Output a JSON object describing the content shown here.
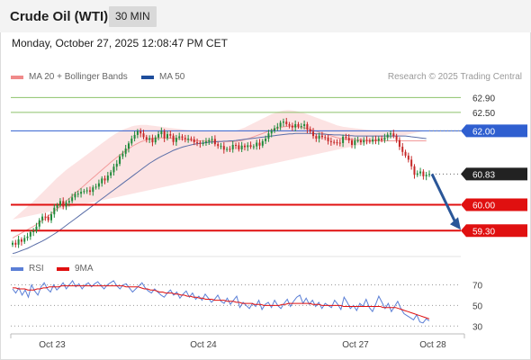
{
  "header": {
    "title": "Crude Oil (WTI)",
    "timeframe": "30 MIN"
  },
  "date_text": "Monday, October 27, 2025 12:08:47 PM CET",
  "credit": "Research © 2025 Trading Central",
  "legend": [
    {
      "label": "MA 20 + Bollinger Bands",
      "color": "#f08a8a"
    },
    {
      "label": "MA 50",
      "color": "#1f4e9c"
    }
  ],
  "rsi_legend": [
    {
      "label": "RSI",
      "color": "#5b7fd6"
    },
    {
      "label": "9MA",
      "color": "#e01010"
    }
  ],
  "colors": {
    "up": "#1f8a3a",
    "down": "#c62828",
    "bb_fill": "#fcdede",
    "ma20": "#f29a9a",
    "ma50": "#5b6fa8",
    "pivot": "#2f5fd0",
    "resistance": "#8cc26a",
    "support": "#e01010",
    "last": "#222222",
    "arrow": "#2a5698"
  },
  "chart_data": [
    {
      "type": "candlestick",
      "x_ticks": [
        "Oct 23",
        "Oct 24",
        "Oct 27",
        "Oct 28"
      ],
      "ylim": [
        58.6,
        63.3
      ],
      "levels": [
        {
          "value": 62.9,
          "label": "62.90",
          "kind": "resistance"
        },
        {
          "value": 62.5,
          "label": "62.50",
          "kind": "resistance"
        },
        {
          "value": 62.0,
          "label": "62.00",
          "kind": "pivot"
        },
        {
          "value": 60.0,
          "label": "60.00",
          "kind": "support"
        },
        {
          "value": 59.3,
          "label": "59.30",
          "kind": "support"
        }
      ],
      "last_price": {
        "value": 60.83,
        "label": "60.83"
      },
      "closes": [
        58.97,
        58.92,
        59.06,
        59.0,
        59.1,
        59.14,
        59.26,
        59.29,
        59.41,
        59.58,
        59.68,
        59.67,
        59.58,
        59.74,
        59.92,
        59.99,
        60.1,
        59.95,
        60.06,
        60.1,
        60.2,
        60.29,
        60.3,
        60.35,
        60.37,
        60.39,
        60.35,
        60.47,
        60.49,
        60.58,
        60.71,
        60.66,
        60.79,
        60.88,
        61.03,
        61.11,
        61.31,
        61.38,
        61.52,
        61.66,
        61.79,
        61.89,
        61.99,
        61.93,
        61.83,
        61.76,
        61.8,
        61.69,
        61.82,
        61.91,
        61.99,
        61.8,
        61.91,
        61.87,
        61.7,
        61.81,
        61.85,
        61.81,
        61.78,
        61.79,
        61.77,
        61.69,
        61.68,
        61.65,
        61.67,
        61.71,
        61.75,
        61.78,
        61.64,
        61.59,
        61.59,
        61.49,
        61.51,
        61.5,
        61.62,
        61.61,
        61.5,
        61.6,
        61.56,
        61.61,
        61.57,
        61.58,
        61.68,
        61.6,
        61.72,
        61.79,
        61.93,
        62.0,
        62.07,
        62.11,
        62.22,
        62.25,
        62.18,
        62.14,
        62.09,
        62.18,
        62.12,
        62.13,
        62.18,
        62.04,
        61.98,
        61.86,
        61.79,
        61.87,
        61.83,
        61.82,
        61.72,
        61.7,
        61.69,
        61.68,
        61.67,
        61.84,
        61.81,
        61.74,
        61.62,
        61.74,
        61.74,
        61.69,
        61.75,
        61.74,
        61.71,
        61.77,
        61.73,
        61.79,
        61.75,
        61.82,
        61.9,
        61.93,
        61.86,
        61.75,
        61.57,
        61.43,
        61.33,
        61.22,
        61.04,
        60.81,
        60.85,
        60.9,
        60.77,
        60.81,
        60.83
      ],
      "ma50": [
        58.68,
        58.7,
        58.73,
        58.76,
        58.79,
        58.82,
        58.86,
        58.9,
        58.94,
        58.98,
        59.02,
        59.06,
        59.11,
        59.16,
        59.21,
        59.26,
        59.32,
        59.38,
        59.44,
        59.5,
        59.56,
        59.62,
        59.68,
        59.74,
        59.8,
        59.86,
        59.92,
        59.98,
        60.04,
        60.1,
        60.16,
        60.22,
        60.28,
        60.34,
        60.4,
        60.46,
        60.52,
        60.58,
        60.64,
        60.7,
        60.76,
        60.82,
        60.88,
        60.94,
        61.0,
        61.06,
        61.12,
        61.17,
        61.22,
        61.27,
        61.31,
        61.35,
        61.39,
        61.43,
        61.47,
        61.5,
        61.53,
        61.56,
        61.58,
        61.6,
        61.62,
        61.64,
        61.65,
        61.66,
        61.67,
        61.68,
        61.69,
        61.7,
        61.7,
        61.71,
        61.71,
        61.72,
        61.72,
        61.73,
        61.73,
        61.74,
        61.75,
        61.76,
        61.77,
        61.78,
        61.79,
        61.8,
        61.81,
        61.82,
        61.83,
        61.84,
        61.85,
        61.86,
        61.87,
        61.88,
        61.89,
        61.9,
        61.91,
        61.92,
        61.92,
        61.93,
        61.93,
        61.93,
        61.93,
        61.93,
        61.93,
        61.93,
        61.92,
        61.92,
        61.91,
        61.91,
        61.9,
        61.9,
        61.89,
        61.89,
        61.89,
        61.88,
        61.88,
        61.87,
        61.87,
        61.86,
        61.86,
        61.86,
        61.86,
        61.86,
        61.86,
        61.86,
        61.86,
        61.86,
        61.86,
        61.86,
        61.86,
        61.86,
        61.86,
        61.86,
        61.86,
        61.86,
        61.86,
        61.85,
        61.84,
        61.83,
        61.82,
        61.81,
        61.8,
        61.79
      ],
      "bb_upper": [
        59.6,
        59.67,
        59.74,
        59.81,
        59.88,
        59.95,
        60.02,
        60.09,
        60.17,
        60.25,
        60.33,
        60.41,
        60.49,
        60.57,
        60.65,
        60.73,
        60.8,
        60.87,
        60.94,
        61.0,
        61.06,
        61.12,
        61.18,
        61.24,
        61.3,
        61.36,
        61.42,
        61.48,
        61.54,
        61.6,
        61.66,
        61.72,
        61.78,
        61.84,
        61.89,
        61.94,
        61.99,
        62.03,
        62.06,
        62.09,
        62.12,
        62.14,
        62.15,
        62.16,
        62.16,
        62.16,
        62.15,
        62.14,
        62.13,
        62.12,
        62.11,
        62.1,
        62.09,
        62.08,
        62.07,
        62.06,
        62.05,
        62.04,
        62.03,
        62.02,
        62.01,
        62.0,
        62.0,
        62.0,
        62.0,
        62.0,
        62.0,
        62.0,
        62.0,
        62.0,
        62.0,
        62.0,
        62.0,
        62.0,
        62.0,
        62.01,
        62.03,
        62.06,
        62.09,
        62.13,
        62.17,
        62.21,
        62.25,
        62.29,
        62.33,
        62.37,
        62.41,
        62.45,
        62.48,
        62.51,
        62.53,
        62.55,
        62.56,
        62.56,
        62.55,
        62.54,
        62.52,
        62.5,
        62.48,
        62.45,
        62.42,
        62.39,
        62.36,
        62.33,
        62.3,
        62.27,
        62.24,
        62.21,
        62.18,
        62.15,
        62.13,
        62.11,
        62.1,
        62.09,
        62.08,
        62.07,
        62.06,
        62.05,
        62.04,
        62.03,
        62.02,
        62.01,
        62.01,
        62.01,
        62.01,
        62.01,
        62.01,
        62.01,
        62.01,
        62.01,
        62.01,
        62.01,
        62.01,
        62.01,
        62.01,
        62.01,
        62.01,
        62.01,
        62.01,
        62.01
      ],
      "bb_lower": [
        58.6,
        58.62,
        58.64,
        58.66,
        58.68,
        58.7,
        58.72,
        58.74,
        58.76,
        58.79,
        58.82,
        58.86,
        58.9,
        58.95,
        59.0,
        59.06,
        59.12,
        59.19,
        59.26,
        59.34,
        59.42,
        59.5,
        59.58,
        59.66,
        59.74,
        59.82,
        59.9,
        59.98,
        60.06,
        60.14,
        60.22,
        60.3,
        60.38,
        60.46,
        60.54,
        60.62,
        60.7,
        60.78,
        60.86,
        60.94,
        61.02,
        61.1,
        61.17,
        61.24,
        61.3,
        61.36,
        61.41,
        61.45,
        61.48,
        61.5,
        61.51,
        61.52,
        61.52,
        61.52,
        61.52,
        61.52,
        61.52,
        61.51,
        61.5,
        61.49,
        61.48,
        61.47,
        61.46,
        61.46,
        61.45,
        61.45,
        61.44,
        61.44,
        61.43,
        61.43,
        61.42,
        61.42,
        61.42,
        61.42,
        61.42,
        61.42,
        61.42,
        61.42,
        61.43,
        61.44,
        61.45,
        61.47,
        61.49,
        61.51,
        61.53,
        61.55,
        61.57,
        61.59,
        61.61,
        61.63,
        61.65,
        61.67,
        61.68,
        61.69,
        61.7,
        61.7,
        61.7,
        61.69,
        61.68,
        61.67,
        61.66,
        61.64,
        61.62,
        61.6,
        61.58,
        61.56,
        61.54,
        61.52,
        61.5,
        61.48,
        61.47,
        61.46,
        61.45,
        61.45,
        61.45,
        61.45,
        61.45,
        61.45,
        61.45,
        61.45,
        61.45,
        61.45,
        61.45,
        61.45,
        61.45,
        61.45,
        61.45,
        61.45,
        61.45,
        61.45,
        61.45,
        61.45,
        61.45,
        61.45,
        61.45,
        61.45,
        61.45,
        61.45,
        61.45,
        61.45
      ]
    },
    {
      "type": "line",
      "name": "RSI panel",
      "ylim": [
        25,
        80
      ],
      "y_ticks": [
        {
          "value": 70,
          "label": "70"
        },
        {
          "value": 50,
          "label": "50"
        },
        {
          "value": 30,
          "label": "30"
        }
      ],
      "series": [
        {
          "name": "RSI",
          "values": [
            66,
            62,
            67,
            60,
            65,
            58,
            70,
            64,
            60,
            68,
            72,
            66,
            63,
            70,
            65,
            68,
            72,
            66,
            70,
            74,
            68,
            71,
            66,
            70,
            72,
            68,
            71,
            73,
            69,
            66,
            70,
            72,
            74,
            69,
            66,
            70,
            71,
            67,
            63,
            66,
            69,
            72,
            67,
            64,
            62,
            66,
            63,
            60,
            58,
            62,
            65,
            60,
            63,
            57,
            61,
            64,
            58,
            62,
            56,
            59,
            55,
            61,
            57,
            53,
            56,
            60,
            54,
            52,
            57,
            51,
            55,
            59,
            48,
            53,
            50,
            47,
            52,
            49,
            55,
            46,
            51,
            53,
            48,
            55,
            50,
            47,
            52,
            56,
            49,
            54,
            58,
            60,
            52,
            57,
            51,
            55,
            49,
            53,
            47,
            52,
            50,
            48,
            55,
            51,
            46,
            58,
            53,
            47,
            50,
            45,
            52,
            49,
            56,
            48,
            44,
            51,
            59,
            53,
            47,
            52,
            44,
            49,
            54,
            47,
            42,
            40,
            38,
            36,
            41,
            34,
            33,
            37,
            35
          ]
        },
        {
          "name": "9MA",
          "values": [
            67,
            67,
            66,
            66,
            66,
            65,
            65,
            65,
            66,
            66,
            67,
            67,
            68,
            68,
            68,
            68,
            69,
            69,
            69,
            69,
            69,
            69,
            69,
            69,
            69,
            69,
            69,
            69,
            69,
            69,
            69,
            69,
            69,
            69,
            69,
            69,
            69,
            68,
            68,
            68,
            68,
            68,
            67,
            66,
            66,
            65,
            65,
            64,
            63,
            63,
            62,
            62,
            62,
            61,
            61,
            60,
            60,
            59,
            59,
            58,
            58,
            57,
            57,
            56,
            56,
            56,
            55,
            55,
            55,
            55,
            54,
            54,
            54,
            53,
            53,
            52,
            52,
            52,
            52,
            51,
            51,
            51,
            50,
            50,
            50,
            50,
            50,
            50,
            51,
            51,
            52,
            52,
            52,
            52,
            52,
            52,
            52,
            52,
            51,
            51,
            51,
            50,
            50,
            50,
            50,
            50,
            50,
            50,
            49,
            49,
            49,
            49,
            49,
            49,
            49,
            49,
            49,
            49,
            49,
            49,
            49,
            48,
            48,
            48,
            48,
            48,
            47,
            46,
            45,
            44,
            43,
            42,
            41,
            40,
            39,
            38,
            37
          ]
        }
      ]
    }
  ]
}
